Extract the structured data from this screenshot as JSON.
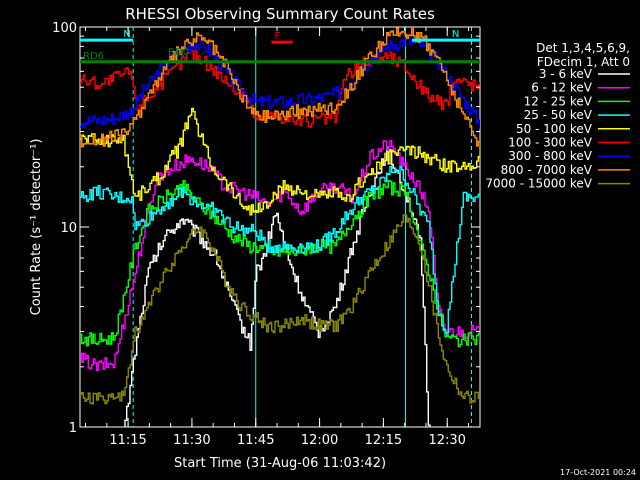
{
  "chart_data": {
    "type": "line",
    "title": "RHESSI Observing Summary Count Rates",
    "xlabel": "Start Time (31-Aug-06 11:03:42)",
    "ylabel": "Count Rate (s⁻¹ detector⁻¹)",
    "y_scale": "log",
    "ylim": [
      1,
      100
    ],
    "xlim_minutes": [
      0,
      94
    ],
    "x_tick_labels": [
      "11:15",
      "11:30",
      "11:45",
      "12:00",
      "12:15",
      "12:30"
    ],
    "x_tick_minutes": [
      11.3,
      26.3,
      41.3,
      56.3,
      71.3,
      86.3
    ],
    "y_tick_labels": [
      "1",
      "10",
      "100"
    ],
    "legend": {
      "position": "right",
      "header": [
        "Det 1,3,4,5,6,9,",
        "FDecim 1, Att 0"
      ]
    },
    "series": [
      {
        "name": "3 - 6 keV",
        "color": "#ffffff",
        "t": [
          0,
          6,
          10,
          13,
          16,
          20,
          24,
          28,
          32,
          36,
          38,
          40,
          41.3,
          43,
          46,
          48,
          50,
          53,
          56,
          60,
          64,
          68,
          72,
          75,
          78,
          80,
          82,
          85,
          90,
          94
        ],
        "y": [
          0.85,
          0.85,
          0.85,
          2.5,
          6,
          9,
          11,
          9,
          7,
          4,
          3.2,
          2.6,
          6,
          7,
          12,
          8,
          6,
          4,
          3,
          4,
          8,
          15,
          24,
          18,
          12,
          8,
          0.85,
          0.85,
          0.85,
          0.85
        ]
      },
      {
        "name": "6 - 12 keV",
        "color": "#ff00ff",
        "t": [
          0,
          4,
          8,
          13,
          16,
          18,
          22,
          26,
          30,
          34,
          38,
          41.3,
          44,
          48,
          52,
          56,
          60,
          64,
          68,
          72,
          74,
          76,
          78,
          80,
          82,
          84,
          86,
          90,
          94
        ],
        "y": [
          2.2,
          2.0,
          2.1,
          6,
          12,
          18,
          20,
          22,
          20,
          16,
          15,
          14,
          13,
          15,
          12,
          15,
          16,
          14,
          22,
          26,
          24,
          20,
          18,
          15,
          12,
          4,
          3,
          3,
          3
        ]
      },
      {
        "name": "12 - 25 keV",
        "color": "#00ff00",
        "t": [
          0,
          4,
          8,
          13,
          16,
          20,
          24,
          28,
          32,
          36,
          40,
          41.3,
          45,
          50,
          55,
          60,
          64,
          68,
          72,
          76,
          78,
          80,
          82,
          84,
          86,
          90,
          94
        ],
        "y": [
          2.8,
          2.7,
          2.8,
          8,
          12,
          14,
          16,
          13,
          11,
          9,
          8,
          8,
          7.5,
          7.5,
          8,
          8,
          11,
          14,
          16,
          15,
          12,
          8,
          6,
          4,
          2.8,
          2.7,
          2.8
        ]
      },
      {
        "name": "25 - 50 keV",
        "color": "#00ffff",
        "t": [
          0,
          4,
          8,
          12,
          13,
          16,
          20,
          24,
          28,
          32,
          36,
          40,
          41.3,
          44,
          48,
          52,
          56,
          60,
          62,
          66,
          70,
          74,
          76,
          78,
          80,
          82,
          84,
          86,
          90,
          94
        ],
        "y": [
          14,
          15,
          14,
          14,
          10,
          11,
          13,
          15,
          13,
          12,
          10,
          9.5,
          9.5,
          8,
          8,
          8,
          8,
          9.5,
          11,
          14,
          16,
          20,
          18,
          15,
          12,
          10,
          4,
          3,
          14,
          14
        ]
      },
      {
        "name": "50 - 100 keV",
        "color": "#ffff00",
        "t": [
          0,
          6,
          10,
          13,
          16,
          19,
          21,
          23,
          26,
          28,
          31,
          35,
          38,
          41.3,
          44,
          48,
          52,
          56,
          60,
          62,
          66,
          70,
          74,
          78,
          82,
          86,
          90,
          94
        ],
        "y": [
          28,
          27,
          28,
          14,
          16,
          18,
          22,
          24,
          38,
          30,
          20,
          16,
          13,
          12,
          13,
          16,
          15,
          14,
          15,
          13,
          17,
          20,
          24,
          24,
          22,
          20,
          20,
          22
        ]
      },
      {
        "name": "100 - 300 keV",
        "color": "#ff0000",
        "t": [
          0,
          5,
          10,
          12,
          13,
          16,
          20,
          24,
          26,
          28,
          32,
          36,
          40,
          41.3,
          43,
          47,
          51,
          55,
          58,
          60,
          62,
          66,
          70,
          72,
          76,
          80,
          84,
          86,
          88,
          92,
          94
        ],
        "y": [
          55,
          52,
          58,
          60,
          40,
          45,
          55,
          68,
          75,
          70,
          60,
          50,
          42,
          34,
          36,
          36,
          34,
          34,
          35,
          35,
          55,
          65,
          70,
          72,
          65,
          50,
          42,
          40,
          55,
          52,
          50
        ]
      },
      {
        "name": "300 - 800 keV",
        "color": "#0000ff",
        "t": [
          0,
          4,
          8,
          12,
          15,
          19,
          23,
          27,
          30,
          34,
          38,
          41.3,
          44,
          48,
          52,
          56,
          60,
          64,
          68,
          72,
          76,
          80,
          84,
          88,
          92,
          94
        ],
        "y": [
          34,
          34,
          35,
          38,
          48,
          62,
          75,
          83,
          78,
          60,
          48,
          42,
          42,
          42,
          43,
          44,
          46,
          55,
          68,
          80,
          85,
          82,
          68,
          50,
          38,
          33
        ]
      },
      {
        "name": "800 - 7000 keV",
        "color": "#ff8c00",
        "t": [
          0,
          4,
          8,
          12,
          15,
          19,
          23,
          27,
          30,
          34,
          38,
          41.3,
          44,
          48,
          52,
          56,
          60,
          64,
          68,
          72,
          76,
          80,
          84,
          88,
          92,
          94
        ],
        "y": [
          27,
          27,
          28,
          31,
          42,
          58,
          75,
          88,
          85,
          65,
          45,
          36,
          36,
          37,
          38,
          39,
          40,
          52,
          70,
          88,
          95,
          90,
          70,
          45,
          30,
          26
        ]
      },
      {
        "name": "7000 - 15000 keV",
        "color": "#888800",
        "t": [
          0,
          3,
          6,
          10,
          13,
          16,
          20,
          24,
          28,
          31,
          34,
          38,
          41.3,
          44,
          48,
          52,
          56,
          60,
          64,
          68,
          72,
          76,
          78,
          80,
          82,
          84,
          86,
          90,
          94
        ],
        "y": [
          1.4,
          1.4,
          1.4,
          1.4,
          3,
          4,
          6,
          8,
          10,
          8,
          5.5,
          4,
          3.5,
          3.2,
          3.2,
          3.5,
          3.2,
          3.2,
          4,
          6,
          8,
          11,
          10,
          8,
          5,
          3,
          2,
          1.4,
          1.4
        ]
      }
    ],
    "annotations": [
      {
        "text": "N",
        "t_start": 0,
        "t_end": 12.5,
        "y": 86,
        "color": "#00ffff"
      },
      {
        "text": "N",
        "t_start": 78,
        "t_end": 94,
        "y": 86,
        "color": "#00ffff"
      },
      {
        "text": "RD6",
        "t_start": 0,
        "t_end": 94,
        "y": 67,
        "color": "#008000"
      },
      {
        "text": "RD0",
        "t_start": 20,
        "t_end": 20,
        "y": 70,
        "color": "#008000"
      },
      {
        "text": "F",
        "t_start": 45,
        "t_end": 50,
        "y": 84,
        "color": "#ff0000"
      }
    ],
    "vertical_markers": [
      {
        "t": 12.5,
        "color": "#00ffff",
        "style": "dashed"
      },
      {
        "t": 41.3,
        "color": "#00ffff",
        "style": "solid"
      },
      {
        "t": 76.5,
        "color": "#00ffff",
        "style": "solid"
      },
      {
        "t": 92,
        "color": "#00ffff",
        "style": "dashed"
      }
    ],
    "footer_stamp": "17-Oct-2021 00:24"
  }
}
